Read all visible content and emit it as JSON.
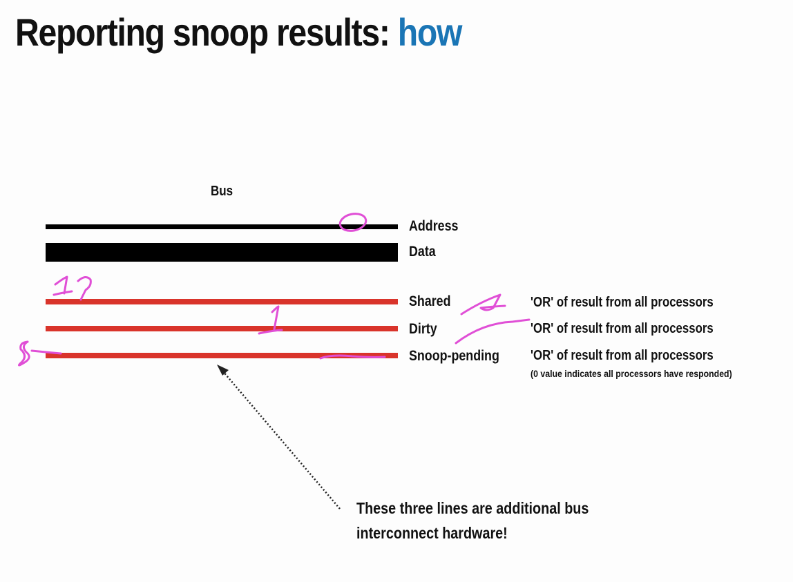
{
  "title": {
    "main": "Reporting snoop results:",
    "accent": "how"
  },
  "bus_label": "Bus",
  "signals": [
    {
      "name": "Address",
      "color": "#000000"
    },
    {
      "name": "Data",
      "color": "#000000"
    },
    {
      "name": "Shared",
      "color": "#d9342b"
    },
    {
      "name": "Dirty",
      "color": "#d9342b"
    },
    {
      "name": "Snoop-pending",
      "color": "#d9342b"
    }
  ],
  "descriptions": {
    "shared": "'OR' of result from all processors",
    "dirty": "'OR' of result from all processors",
    "snoop_pending": "'OR' of result from all processors",
    "snoop_pending_note": "(0 value indicates all processors have responded)"
  },
  "caption": {
    "line1": "These three lines are additional bus",
    "line2": "interconnect hardware!"
  },
  "colors": {
    "accent": "#1a75b5",
    "signal_line": "#d9342b",
    "annotation": "#e04fd6"
  }
}
